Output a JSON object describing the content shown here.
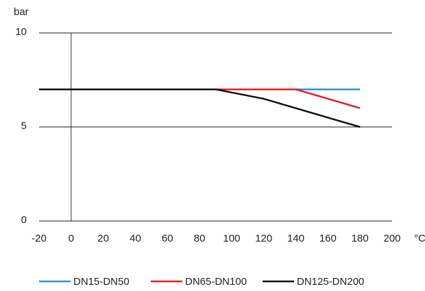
{
  "chart_data": {
    "type": "line",
    "title": "",
    "xlabel": "°C",
    "ylabel": "bar",
    "xlim": [
      -20,
      200
    ],
    "ylim": [
      0,
      10
    ],
    "x_ticks": [
      -20,
      0,
      20,
      40,
      60,
      80,
      100,
      120,
      140,
      160,
      180,
      200
    ],
    "y_ticks": [
      0,
      5,
      10
    ],
    "grid": "horizontal",
    "legend_position": "bottom",
    "series": [
      {
        "name": "DN15-DN50",
        "color": "#2f8fdd",
        "x": [
          -20,
          90,
          140,
          180
        ],
        "y": [
          7,
          7,
          7,
          7
        ]
      },
      {
        "name": "DN65-DN100",
        "color": "#e31e24",
        "x": [
          -20,
          90,
          140,
          180
        ],
        "y": [
          7,
          7,
          7,
          6
        ]
      },
      {
        "name": "DN125-DN200",
        "color": "#111111",
        "x": [
          -20,
          90,
          120,
          180
        ],
        "y": [
          7,
          7,
          6.5,
          5
        ]
      }
    ]
  }
}
